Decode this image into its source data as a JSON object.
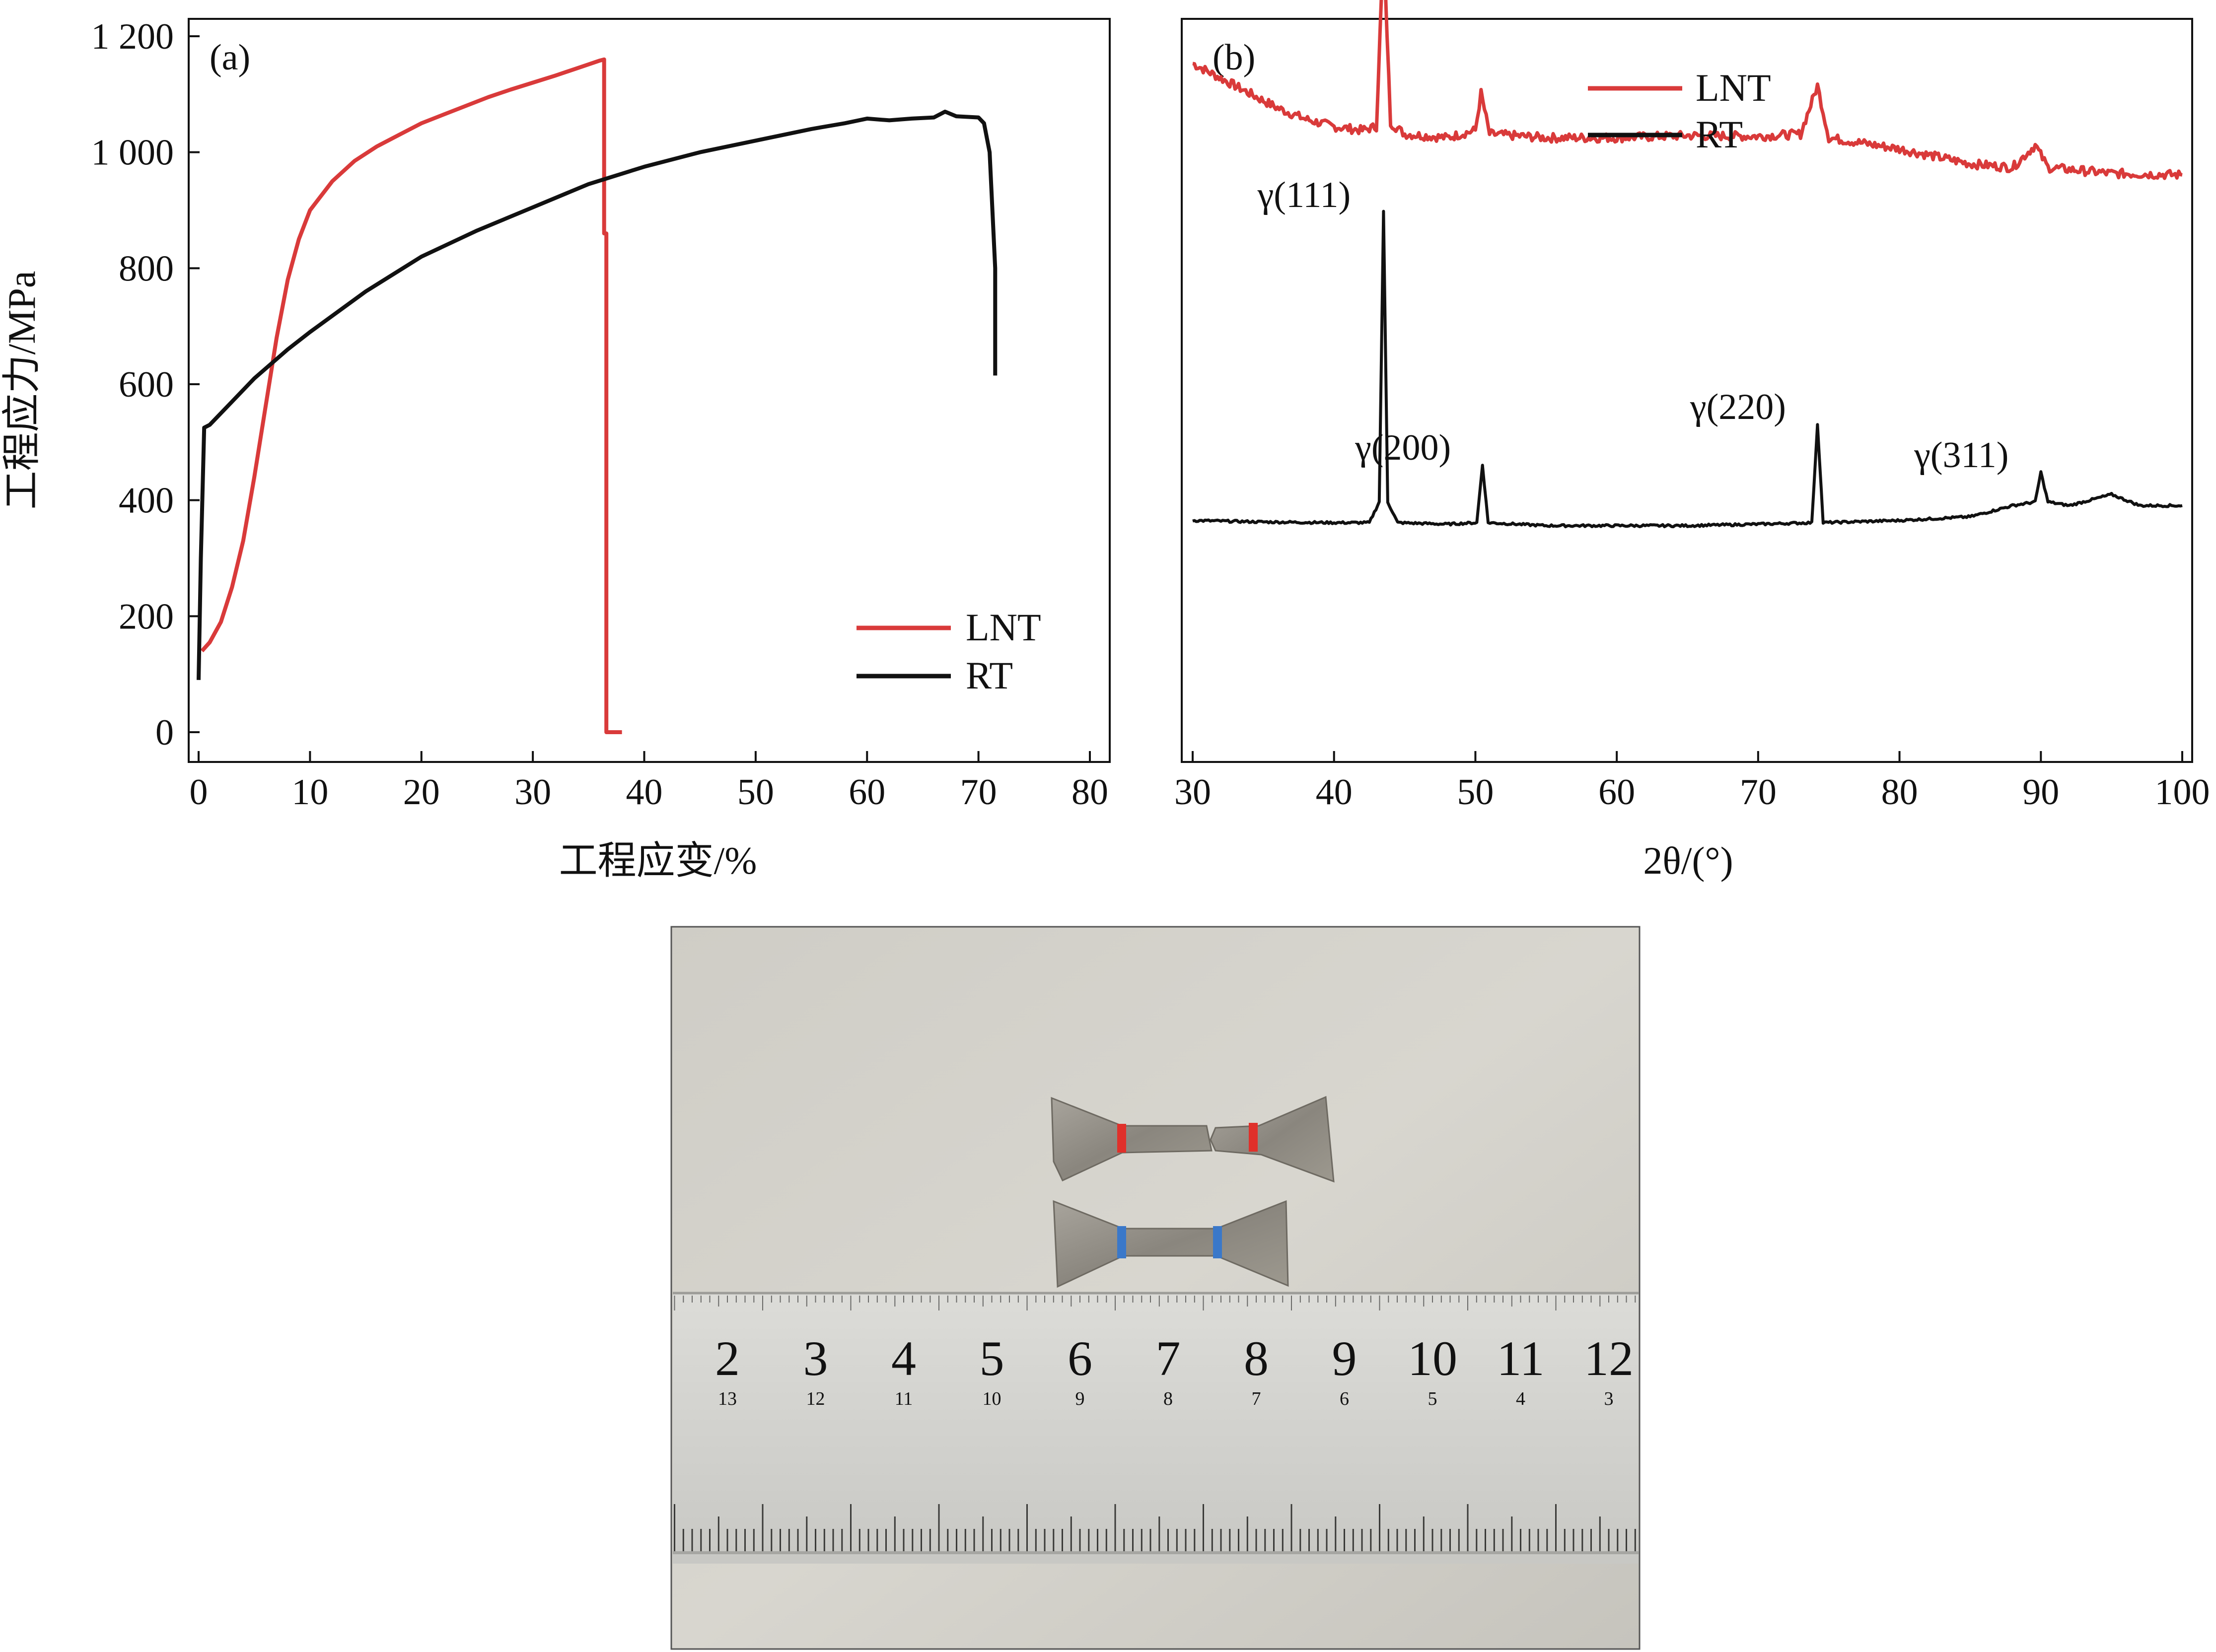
{
  "chart_data": [
    {
      "panel_label": "(a)",
      "type": "line",
      "xlabel": "工程应变/%",
      "ylabel": "工程应力/MPa",
      "xlim": [
        0,
        80
      ],
      "ylim": [
        0,
        1200
      ],
      "x_ticks": [
        0,
        10,
        20,
        30,
        40,
        50,
        60,
        70,
        80
      ],
      "x_tick_labels": [
        "0",
        "10",
        "20",
        "30",
        "40",
        "50",
        "60",
        "70",
        "80"
      ],
      "y_ticks": [
        0,
        200,
        400,
        600,
        800,
        1000,
        1200
      ],
      "y_tick_labels": [
        "0",
        "200",
        "400",
        "600",
        "800",
        "1 000",
        "1 200"
      ],
      "grid": false,
      "legend_position": "bottom-right",
      "series": [
        {
          "name": "LNT",
          "color": "#d93a3a",
          "points": [
            [
              0.3,
              140
            ],
            [
              1,
              155
            ],
            [
              2,
              190
            ],
            [
              3,
              250
            ],
            [
              4,
              330
            ],
            [
              5,
              440
            ],
            [
              6,
              560
            ],
            [
              7,
              680
            ],
            [
              8,
              780
            ],
            [
              9,
              850
            ],
            [
              10,
              900
            ],
            [
              12,
              950
            ],
            [
              14,
              985
            ],
            [
              16,
              1010
            ],
            [
              18,
              1030
            ],
            [
              20,
              1050
            ],
            [
              22,
              1065
            ],
            [
              24,
              1080
            ],
            [
              26,
              1095
            ],
            [
              28,
              1108
            ],
            [
              30,
              1120
            ],
            [
              32,
              1132
            ],
            [
              34,
              1145
            ],
            [
              36,
              1158
            ],
            [
              36.4,
              1160
            ],
            [
              36.4,
              860
            ],
            [
              36.6,
              860
            ],
            [
              36.6,
              0
            ],
            [
              38,
              0
            ]
          ]
        },
        {
          "name": "RT",
          "color": "#111111",
          "points": [
            [
              0,
              90
            ],
            [
              0.2,
              300
            ],
            [
              0.5,
              525
            ],
            [
              1,
              530
            ],
            [
              3,
              570
            ],
            [
              5,
              610
            ],
            [
              8,
              660
            ],
            [
              10,
              690
            ],
            [
              15,
              760
            ],
            [
              20,
              820
            ],
            [
              25,
              865
            ],
            [
              30,
              905
            ],
            [
              35,
              945
            ],
            [
              40,
              975
            ],
            [
              45,
              1000
            ],
            [
              50,
              1020
            ],
            [
              55,
              1040
            ],
            [
              58,
              1050
            ],
            [
              60,
              1058
            ],
            [
              62,
              1055
            ],
            [
              64,
              1058
            ],
            [
              66,
              1060
            ],
            [
              67,
              1070
            ],
            [
              68,
              1062
            ],
            [
              70,
              1060
            ],
            [
              70.5,
              1050
            ],
            [
              71,
              1000
            ],
            [
              71.5,
              800
            ],
            [
              71.5,
              615
            ]
          ]
        }
      ]
    },
    {
      "panel_label": "(b)",
      "type": "line",
      "xlabel": "2θ/(°)",
      "ylabel": "",
      "xlim": [
        30,
        100
      ],
      "x_ticks": [
        30,
        40,
        50,
        60,
        70,
        80,
        90,
        100
      ],
      "x_tick_labels": [
        "30",
        "40",
        "50",
        "60",
        "70",
        "80",
        "90",
        "100"
      ],
      "y_ticks_shown": false,
      "grid": false,
      "legend_position": "top-center",
      "series": [
        {
          "name": "LNT",
          "color": "#d93a3a",
          "baseline_offset": 0.88,
          "points": [
            [
              30,
              0.94
            ],
            [
              32,
              0.92
            ],
            [
              34,
              0.9
            ],
            [
              36,
              0.88
            ],
            [
              38,
              0.865
            ],
            [
              40,
              0.855
            ],
            [
              42,
              0.85
            ],
            [
              43,
              0.855
            ],
            [
              43.5,
              1.1
            ],
            [
              44,
              0.86
            ],
            [
              45,
              0.845
            ],
            [
              48,
              0.84
            ],
            [
              50,
              0.85
            ],
            [
              50.4,
              0.9
            ],
            [
              51,
              0.845
            ],
            [
              55,
              0.84
            ],
            [
              60,
              0.84
            ],
            [
              65,
              0.843
            ],
            [
              70,
              0.842
            ],
            [
              73,
              0.845
            ],
            [
              74.2,
              0.91
            ],
            [
              75,
              0.84
            ],
            [
              80,
              0.825
            ],
            [
              85,
              0.805
            ],
            [
              88,
              0.8
            ],
            [
              89.6,
              0.83
            ],
            [
              90.5,
              0.8
            ],
            [
              95,
              0.792
            ],
            [
              100,
              0.79
            ]
          ]
        },
        {
          "name": "RT",
          "color": "#111111",
          "points": [
            [
              30,
              0.325
            ],
            [
              35,
              0.323
            ],
            [
              40,
              0.322
            ],
            [
              42.5,
              0.322
            ],
            [
              43.2,
              0.35
            ],
            [
              43.5,
              0.74
            ],
            [
              43.8,
              0.35
            ],
            [
              44.5,
              0.322
            ],
            [
              48,
              0.32
            ],
            [
              50.1,
              0.322
            ],
            [
              50.5,
              0.4
            ],
            [
              50.9,
              0.322
            ],
            [
              55,
              0.318
            ],
            [
              60,
              0.318
            ],
            [
              65,
              0.318
            ],
            [
              70,
              0.32
            ],
            [
              73.8,
              0.322
            ],
            [
              74.2,
              0.455
            ],
            [
              74.6,
              0.322
            ],
            [
              80,
              0.325
            ],
            [
              85,
              0.33
            ],
            [
              88,
              0.345
            ],
            [
              89.6,
              0.35
            ],
            [
              90,
              0.39
            ],
            [
              90.5,
              0.35
            ],
            [
              92,
              0.345
            ],
            [
              95,
              0.36
            ],
            [
              97,
              0.345
            ],
            [
              100,
              0.345
            ]
          ],
          "peak_labels": [
            {
              "x": 43.5,
              "label": "γ(111)"
            },
            {
              "x": 50.5,
              "label": "γ(200)"
            },
            {
              "x": 74.2,
              "label": "γ(220)"
            },
            {
              "x": 90,
              "label": "γ(311)"
            }
          ]
        }
      ]
    }
  ],
  "photo": {
    "ruler_top_numbers": [
      "2",
      "3",
      "4",
      "5",
      "6",
      "7",
      "8",
      "9",
      "10",
      "11",
      "12"
    ],
    "ruler_bottom_numbers": [
      "13",
      "12",
      "11",
      "10",
      "9",
      "8",
      "7",
      "6",
      "5",
      "4",
      "3"
    ],
    "marker_colors": {
      "lnt_specimen": "#e0302a",
      "rt_specimen": "#3a78c9"
    }
  }
}
